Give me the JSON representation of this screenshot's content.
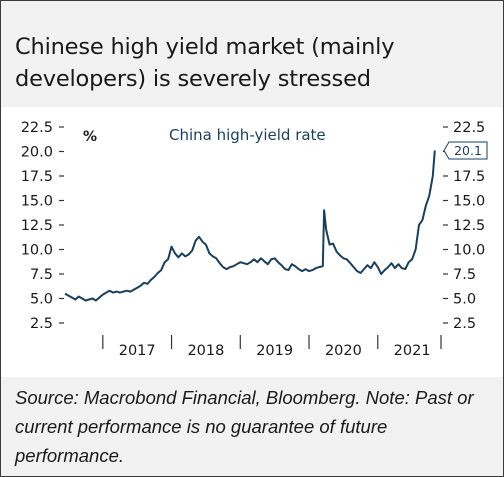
{
  "title": "Chinese high yield market (mainly developers) is severely stressed",
  "source_note": "Source: Macrobond Financial, Bloomberg. Note: Past or current performance is no guarantee of future performance.",
  "colors": {
    "line": "#1a3f5c",
    "text": "#1a1a1a",
    "tick": "#333333",
    "panel": "#f2f2f2"
  },
  "chart_data": {
    "type": "line",
    "title": "China high-yield rate",
    "ylabel": "%",
    "xlabel": "",
    "ylim": [
      2.5,
      22.5
    ],
    "yticks": [
      2.5,
      5.0,
      7.5,
      10.0,
      12.5,
      15.0,
      17.5,
      20.0,
      22.5
    ],
    "ytick_labels": [
      "2.5",
      "5.0",
      "7.5",
      "10.0",
      "12.5",
      "15.0",
      "17.5",
      "20.0",
      "22.5"
    ],
    "xlim": [
      2016.45,
      2021.92
    ],
    "x_category_labels": [
      "2017",
      "2018",
      "2019",
      "2020",
      "2021"
    ],
    "grid": false,
    "last_value_label": "20.1",
    "series": [
      {
        "name": "China high-yield rate",
        "x": [
          2016.45,
          2016.5,
          2016.55,
          2016.6,
          2016.65,
          2016.7,
          2016.75,
          2016.8,
          2016.85,
          2016.9,
          2016.95,
          2017.0,
          2017.05,
          2017.1,
          2017.15,
          2017.2,
          2017.25,
          2017.3,
          2017.35,
          2017.4,
          2017.45,
          2017.5,
          2017.55,
          2017.6,
          2017.65,
          2017.7,
          2017.75,
          2017.8,
          2017.85,
          2017.9,
          2017.95,
          2018.0,
          2018.05,
          2018.1,
          2018.15,
          2018.2,
          2018.25,
          2018.3,
          2018.35,
          2018.4,
          2018.45,
          2018.5,
          2018.55,
          2018.6,
          2018.65,
          2018.7,
          2018.75,
          2018.8,
          2018.85,
          2018.9,
          2018.95,
          2019.0,
          2019.05,
          2019.1,
          2019.15,
          2019.2,
          2019.25,
          2019.3,
          2019.35,
          2019.4,
          2019.45,
          2019.5,
          2019.55,
          2019.6,
          2019.65,
          2019.7,
          2019.75,
          2019.8,
          2019.85,
          2019.9,
          2019.95,
          2020.0,
          2020.05,
          2020.1,
          2020.15,
          2020.2,
          2020.22,
          2020.25,
          2020.3,
          2020.35,
          2020.4,
          2020.45,
          2020.5,
          2020.55,
          2020.6,
          2020.65,
          2020.7,
          2020.75,
          2020.8,
          2020.85,
          2020.9,
          2020.95,
          2021.0,
          2021.05,
          2021.1,
          2021.15,
          2021.2,
          2021.25,
          2021.3,
          2021.35,
          2021.4,
          2021.45,
          2021.5,
          2021.55,
          2021.6,
          2021.65,
          2021.7,
          2021.75,
          2021.8,
          2021.83
        ],
        "y": [
          5.5,
          5.3,
          5.1,
          4.9,
          5.2,
          5.0,
          4.8,
          4.9,
          5.0,
          4.8,
          5.1,
          5.4,
          5.6,
          5.8,
          5.6,
          5.7,
          5.6,
          5.7,
          5.8,
          5.7,
          5.9,
          6.1,
          6.3,
          6.6,
          6.5,
          6.9,
          7.2,
          7.6,
          7.9,
          8.7,
          9.0,
          10.3,
          9.6,
          9.2,
          9.6,
          9.3,
          9.5,
          9.9,
          10.9,
          11.3,
          10.8,
          10.5,
          9.6,
          9.3,
          9.1,
          8.6,
          8.2,
          8.0,
          8.2,
          8.3,
          8.5,
          8.7,
          8.6,
          8.5,
          8.7,
          9.0,
          8.7,
          9.1,
          8.8,
          8.5,
          9.0,
          9.1,
          8.7,
          8.4,
          8.0,
          7.9,
          8.5,
          8.3,
          8.0,
          7.8,
          8.0,
          7.8,
          7.9,
          8.1,
          8.2,
          8.3,
          14.0,
          12.0,
          10.5,
          10.6,
          9.8,
          9.4,
          9.1,
          9.0,
          8.6,
          8.2,
          7.8,
          7.6,
          8.0,
          8.4,
          8.1,
          8.7,
          8.2,
          7.5,
          7.9,
          8.2,
          8.6,
          8.1,
          8.5,
          8.1,
          8.0,
          8.7,
          9.0,
          10.0,
          12.5,
          13.0,
          14.5,
          15.5,
          17.5,
          20.1
        ]
      }
    ]
  }
}
